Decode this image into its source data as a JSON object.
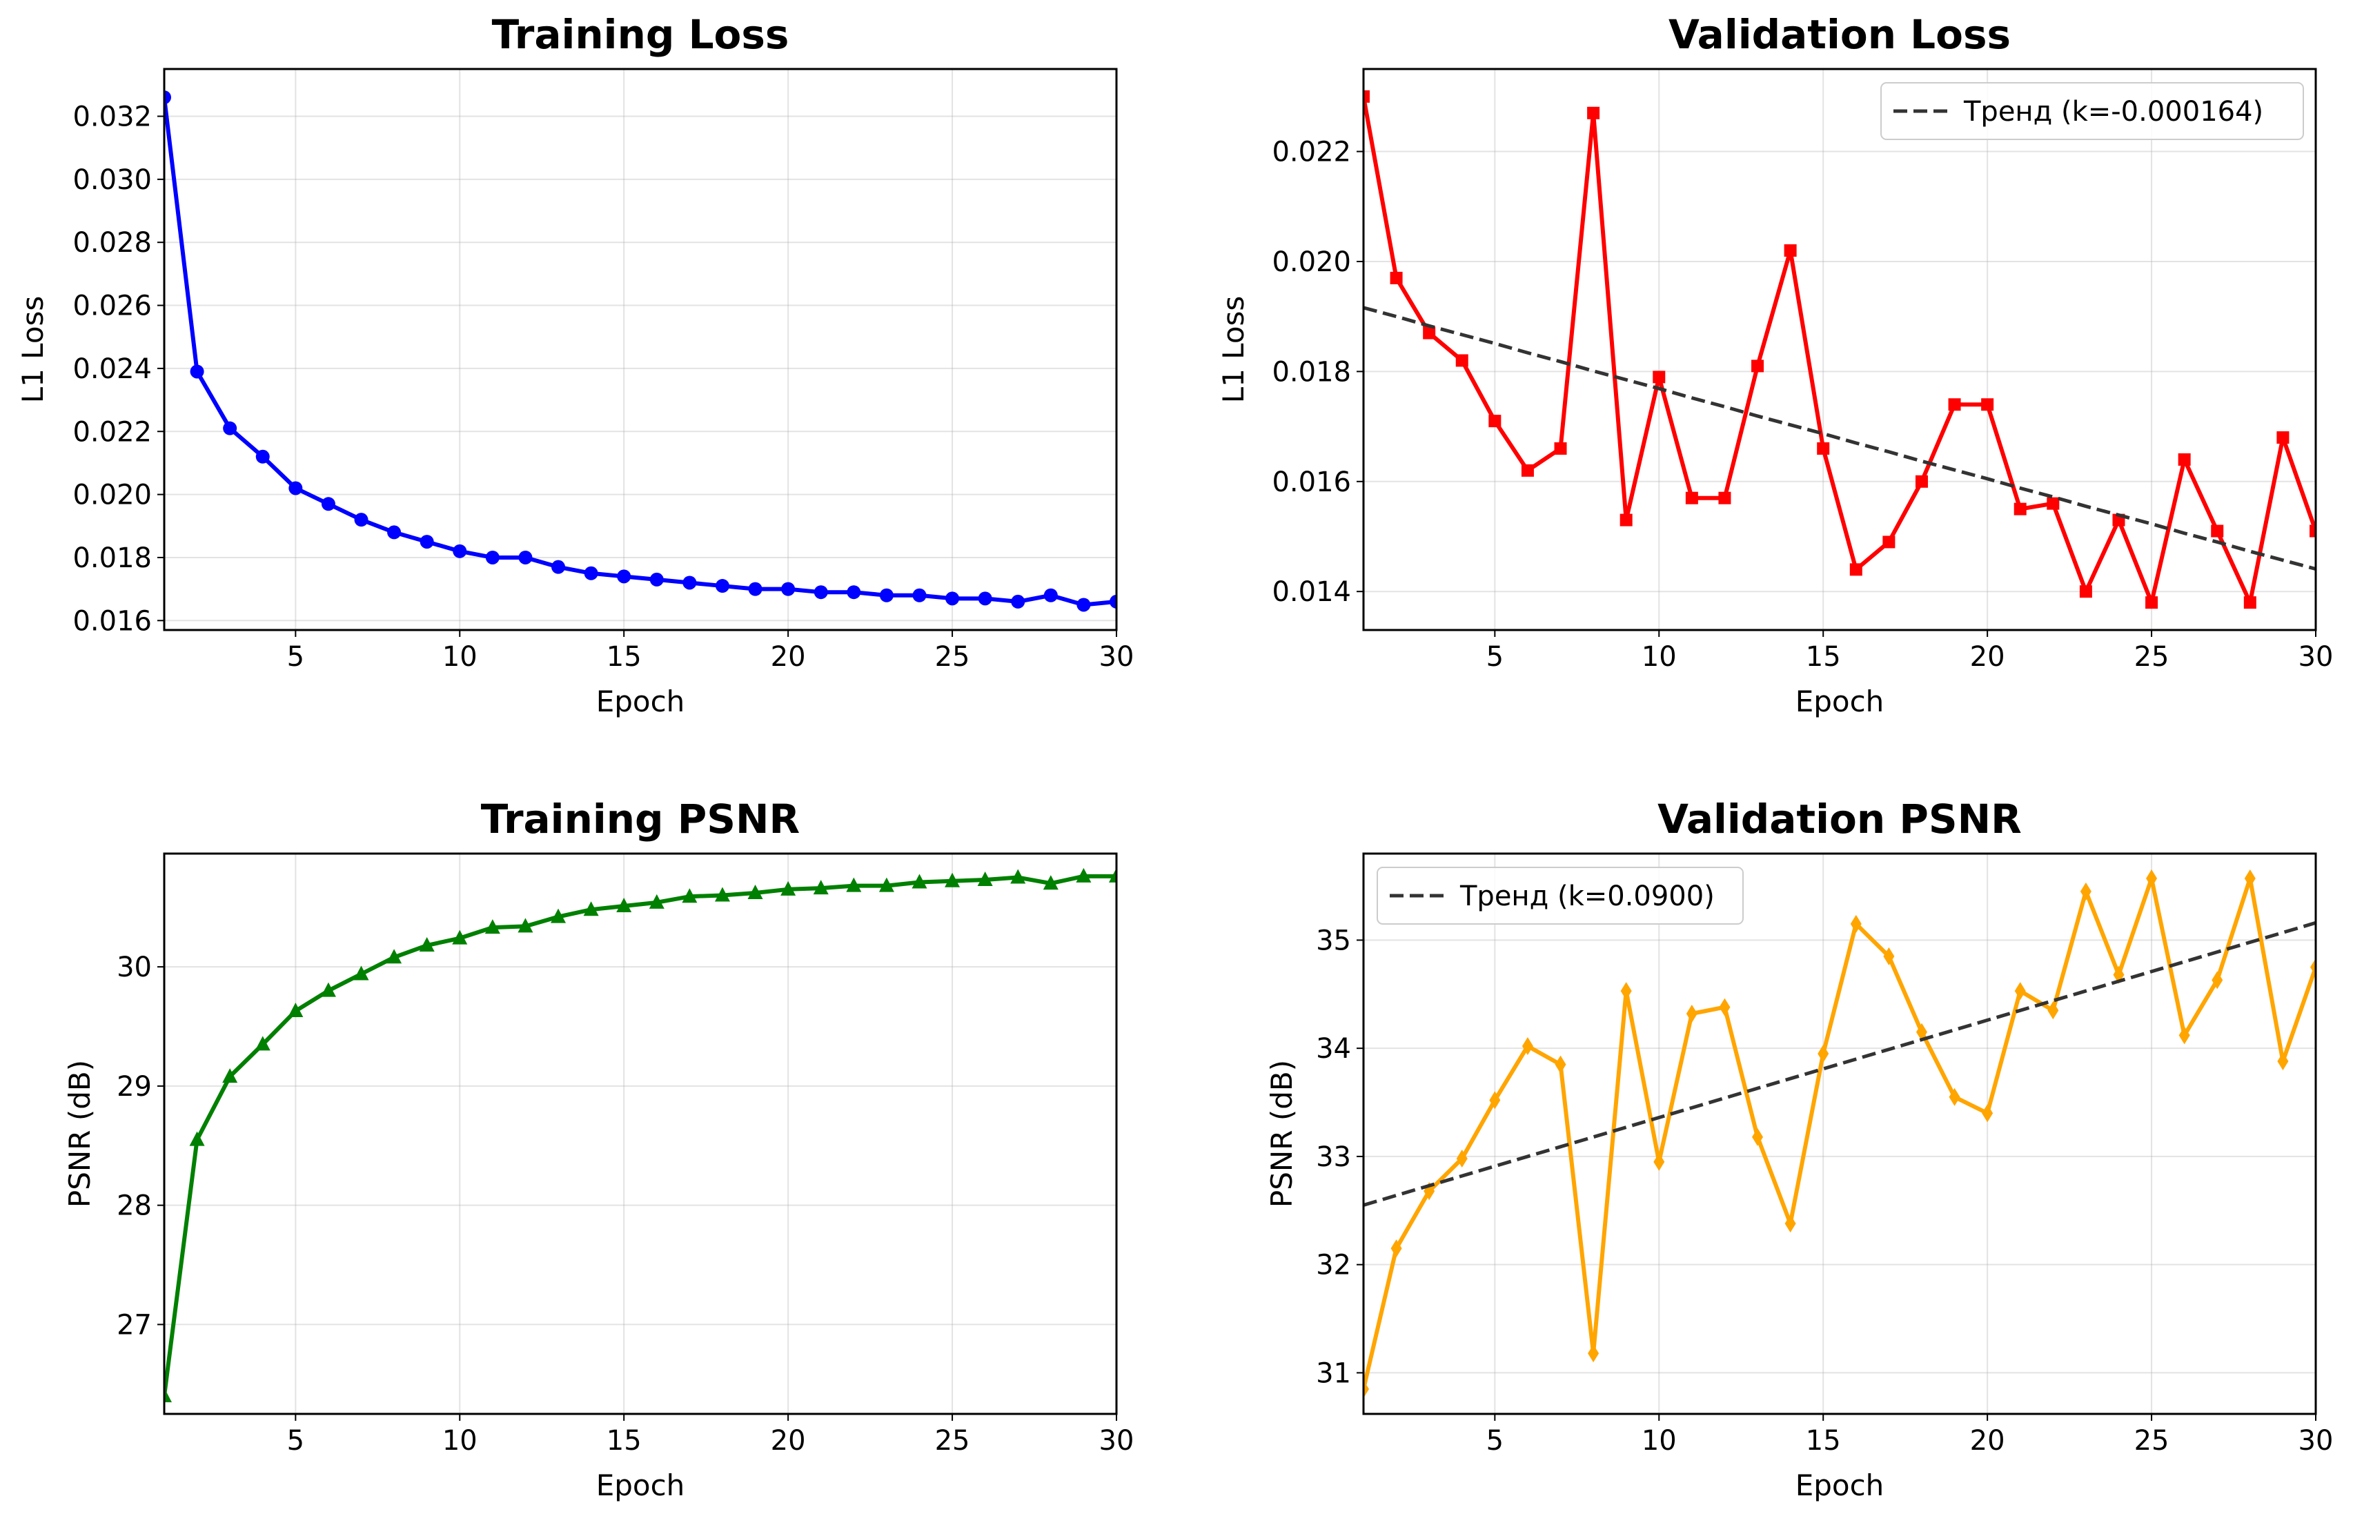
{
  "chart_data": [
    {
      "type": "line",
      "title": "Training Loss",
      "xlabel": "Epoch",
      "ylabel": "L1 Loss",
      "xlim": [
        1,
        30
      ],
      "ylim": [
        0.0157,
        0.0335
      ],
      "xticks": [
        5,
        10,
        15,
        20,
        25,
        30
      ],
      "xtick_labels": [
        "5",
        "10",
        "15",
        "20",
        "25",
        "30"
      ],
      "yticks": [
        0.016,
        0.018,
        0.02,
        0.022,
        0.024,
        0.026,
        0.028,
        0.03,
        0.032
      ],
      "ytick_labels": [
        "0.016",
        "0.018",
        "0.020",
        "0.022",
        "0.024",
        "0.026",
        "0.028",
        "0.030",
        "0.032"
      ],
      "grid": true,
      "x": [
        1,
        2,
        3,
        4,
        5,
        6,
        7,
        8,
        9,
        10,
        11,
        12,
        13,
        14,
        15,
        16,
        17,
        18,
        19,
        20,
        21,
        22,
        23,
        24,
        25,
        26,
        27,
        28,
        29,
        30
      ],
      "series": [
        {
          "color": "#0000ff",
          "marker": "circle",
          "values": [
            0.0326,
            0.0239,
            0.0221,
            0.0212,
            0.0202,
            0.0197,
            0.0192,
            0.0188,
            0.0185,
            0.0182,
            0.018,
            0.018,
            0.0177,
            0.0175,
            0.0174,
            0.0173,
            0.0172,
            0.0171,
            0.017,
            0.017,
            0.0169,
            0.0169,
            0.0168,
            0.0168,
            0.0167,
            0.0167,
            0.0166,
            0.0168,
            0.0165,
            0.0166
          ]
        }
      ]
    },
    {
      "type": "line",
      "title": "Validation Loss",
      "xlabel": "Epoch",
      "ylabel": "L1 Loss",
      "xlim": [
        1,
        30
      ],
      "ylim": [
        0.0133,
        0.0235
      ],
      "xticks": [
        5,
        10,
        15,
        20,
        25,
        30
      ],
      "xtick_labels": [
        "5",
        "10",
        "15",
        "20",
        "25",
        "30"
      ],
      "yticks": [
        0.014,
        0.016,
        0.018,
        0.02,
        0.022
      ],
      "ytick_labels": [
        "0.014",
        "0.016",
        "0.018",
        "0.020",
        "0.022"
      ],
      "grid": true,
      "legend": "top-right",
      "x": [
        1,
        2,
        3,
        4,
        5,
        6,
        7,
        8,
        9,
        10,
        11,
        12,
        13,
        14,
        15,
        16,
        17,
        18,
        19,
        20,
        21,
        22,
        23,
        24,
        25,
        26,
        27,
        28,
        29,
        30
      ],
      "series": [
        {
          "color": "#ff0000",
          "marker": "square",
          "values": [
            0.023,
            0.0197,
            0.0187,
            0.0182,
            0.0171,
            0.0162,
            0.0166,
            0.0227,
            0.0153,
            0.0179,
            0.0157,
            0.0157,
            0.0181,
            0.0202,
            0.0166,
            0.0144,
            0.0149,
            0.016,
            0.0174,
            0.0174,
            0.0155,
            0.0156,
            0.014,
            0.0153,
            0.0138,
            0.0164,
            0.0151,
            0.0138,
            0.0168,
            0.0151
          ]
        },
        {
          "name": "Тренд (k=-0.000164)",
          "color": "#333333",
          "dashed": true,
          "values": [
            0.01916,
            0.019,
            0.01883,
            0.01867,
            0.01851,
            0.01834,
            0.01818,
            0.01801,
            0.01785,
            0.01769,
            0.01752,
            0.01736,
            0.01719,
            0.01703,
            0.01687,
            0.0167,
            0.01654,
            0.01637,
            0.01621,
            0.01605,
            0.01588,
            0.01572,
            0.01555,
            0.01539,
            0.01523,
            0.01506,
            0.0149,
            0.01473,
            0.01457,
            0.01441
          ]
        }
      ]
    },
    {
      "type": "line",
      "title": "Training PSNR",
      "xlabel": "Epoch",
      "ylabel": "PSNR (dB)",
      "xlim": [
        1,
        30
      ],
      "ylim": [
        26.25,
        30.95
      ],
      "xticks": [
        5,
        10,
        15,
        20,
        25,
        30
      ],
      "xtick_labels": [
        "5",
        "10",
        "15",
        "20",
        "25",
        "30"
      ],
      "yticks": [
        27,
        28,
        29,
        30
      ],
      "ytick_labels": [
        "27",
        "28",
        "29",
        "30"
      ],
      "grid": true,
      "x": [
        1,
        2,
        3,
        4,
        5,
        6,
        7,
        8,
        9,
        10,
        11,
        12,
        13,
        14,
        15,
        16,
        17,
        18,
        19,
        20,
        21,
        22,
        23,
        24,
        25,
        26,
        27,
        28,
        29,
        30
      ],
      "series": [
        {
          "color": "#008000",
          "marker": "triangle",
          "values": [
            26.4,
            28.55,
            29.08,
            29.35,
            29.63,
            29.8,
            29.94,
            30.08,
            30.18,
            30.24,
            30.33,
            30.34,
            30.42,
            30.48,
            30.51,
            30.54,
            30.59,
            30.6,
            30.62,
            30.65,
            30.66,
            30.68,
            30.68,
            30.71,
            30.72,
            30.73,
            30.75,
            30.7,
            30.76,
            30.76
          ]
        }
      ]
    },
    {
      "type": "line",
      "title": "Validation PSNR",
      "xlabel": "Epoch",
      "ylabel": "PSNR (dB)",
      "xlim": [
        1,
        30
      ],
      "ylim": [
        30.62,
        35.8
      ],
      "xticks": [
        5,
        10,
        15,
        20,
        25,
        30
      ],
      "xtick_labels": [
        "5",
        "10",
        "15",
        "20",
        "25",
        "30"
      ],
      "yticks": [
        31,
        32,
        33,
        34,
        35
      ],
      "ytick_labels": [
        "31",
        "32",
        "33",
        "34",
        "35"
      ],
      "grid": true,
      "legend": "top-left",
      "x": [
        1,
        2,
        3,
        4,
        5,
        6,
        7,
        8,
        9,
        10,
        11,
        12,
        13,
        14,
        15,
        16,
        17,
        18,
        19,
        20,
        21,
        22,
        23,
        24,
        25,
        26,
        27,
        28,
        29,
        30
      ],
      "series": [
        {
          "color": "#ffa500",
          "marker": "diamond",
          "values": [
            30.85,
            32.15,
            32.68,
            32.98,
            33.52,
            34.02,
            33.85,
            31.18,
            34.53,
            32.95,
            34.32,
            34.38,
            33.18,
            32.38,
            33.95,
            35.15,
            34.85,
            34.15,
            33.55,
            33.4,
            34.53,
            34.35,
            35.45,
            34.68,
            35.57,
            34.12,
            34.63,
            35.57,
            33.88,
            34.75
          ]
        },
        {
          "name": "Тренд (k=0.0900)",
          "color": "#333333",
          "dashed": true,
          "values": [
            32.55,
            32.64,
            32.73,
            32.82,
            32.91,
            33.0,
            33.09,
            33.18,
            33.27,
            33.36,
            33.45,
            33.54,
            33.63,
            33.72,
            33.81,
            33.9,
            33.99,
            34.08,
            34.17,
            34.26,
            34.35,
            34.44,
            34.53,
            34.62,
            34.71,
            34.8,
            34.89,
            34.98,
            35.07,
            35.16
          ]
        }
      ]
    }
  ]
}
